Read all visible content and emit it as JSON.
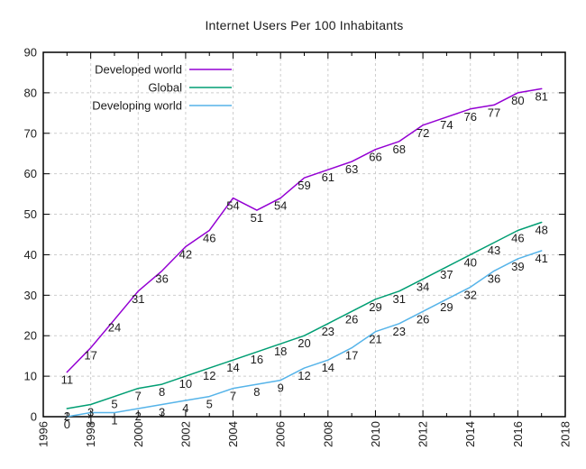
{
  "chart_data": {
    "type": "line",
    "title": "Internet Users Per 100 Inhabitants",
    "x": [
      1997,
      1998,
      1999,
      2000,
      2001,
      2002,
      2003,
      2004,
      2005,
      2006,
      2007,
      2008,
      2009,
      2010,
      2011,
      2012,
      2013,
      2014,
      2015,
      2016,
      2017
    ],
    "series": [
      {
        "name": "Developed world",
        "color": "#9400d3",
        "values": [
          11,
          17,
          24,
          31,
          36,
          42,
          46,
          54,
          51,
          54,
          59,
          61,
          63,
          66,
          68,
          72,
          74,
          76,
          77,
          80,
          81
        ]
      },
      {
        "name": "Global",
        "color": "#009e73",
        "values": [
          2,
          3,
          5,
          7,
          8,
          10,
          12,
          14,
          16,
          18,
          20,
          23,
          26,
          29,
          31,
          34,
          37,
          40,
          43,
          46,
          48
        ]
      },
      {
        "name": "Developing world",
        "color": "#56b4e9",
        "values": [
          0,
          1,
          1,
          2,
          3,
          4,
          5,
          7,
          8,
          9,
          12,
          14,
          17,
          21,
          23,
          26,
          29,
          32,
          36,
          39,
          41
        ]
      }
    ],
    "xlim": [
      1996,
      2018
    ],
    "ylim": [
      0,
      90
    ],
    "x_tick_labels": [
      "1996",
      "1998",
      "2000",
      "2002",
      "2004",
      "2006",
      "2008",
      "2010",
      "2012",
      "2014",
      "2016",
      "2018"
    ],
    "y_tick_labels": [
      "0",
      "10",
      "20",
      "30",
      "40",
      "50",
      "60",
      "70",
      "80",
      "90"
    ],
    "x_minor_step": 1,
    "grid": true,
    "data_labels": true,
    "legend_position": "top-left-inside",
    "x_tick_label_rotation": -90,
    "axis_color": "#000000",
    "grid_color": "#cdcdcd",
    "text_color": "#1c1c1c"
  }
}
